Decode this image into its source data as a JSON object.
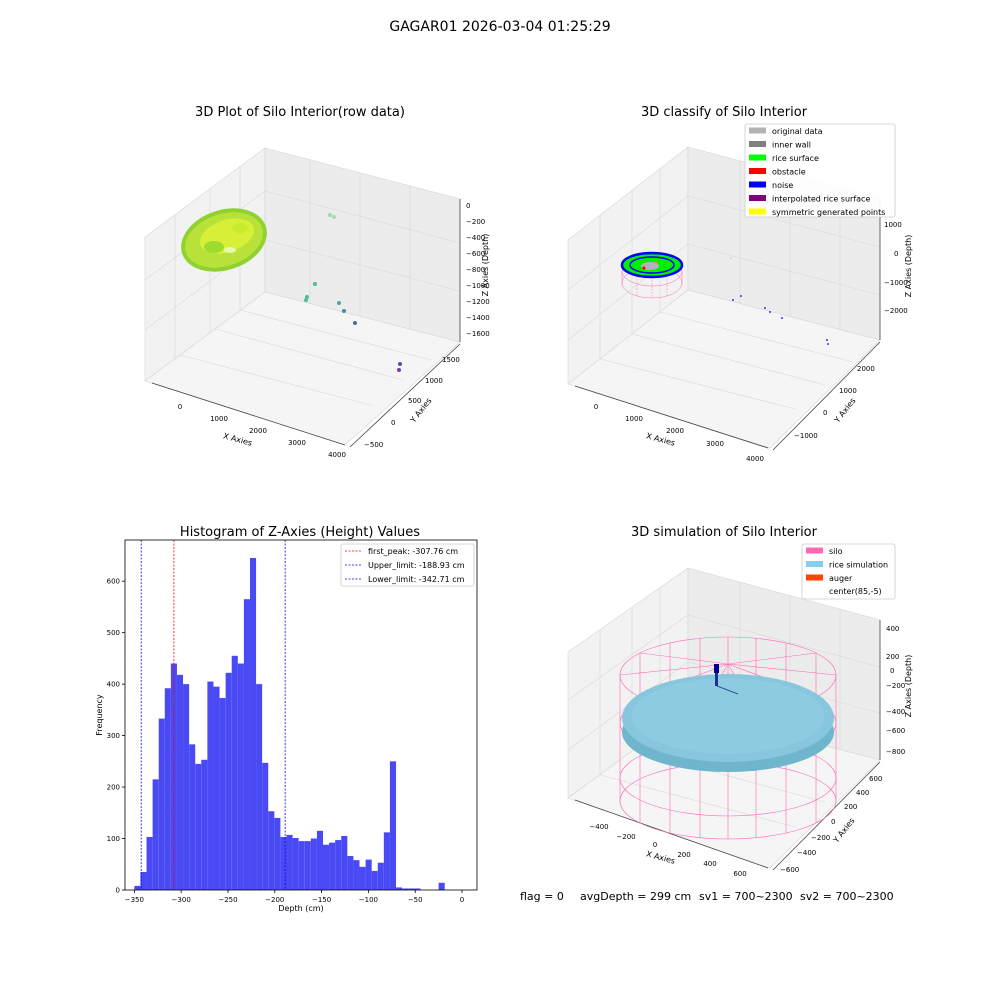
{
  "figure": {
    "suptitle": "GAGAR01 2026-03-04 01:25:29",
    "footer": {
      "flag": "flag = 0",
      "avg": "avgDepth = 299 cm",
      "sv1": "sv1 = 700~2300",
      "sv2": "sv2 = 700~2300"
    }
  },
  "colors": {
    "original_data": "#b3b3b3",
    "inner_wall": "#808080",
    "rice_surface": "#00ff00",
    "obstacle": "#ff0000",
    "noise": "#0000ff",
    "interpolated": "#800080",
    "symmetric": "#ffff00",
    "silo": "#ff69b4",
    "rice_sim": "#87ceeb",
    "auger": "#ff4500",
    "hist_bar": "#4a4af5"
  },
  "chart_data": [
    {
      "type": "scatter3d",
      "title": "3D Plot of Silo Interior(row data)",
      "xlabel": "X Axies",
      "ylabel": "Y Axies",
      "zlabel": "Z Axies (Depth)",
      "xticks": [
        "0",
        "1000",
        "2000",
        "3000",
        "4000"
      ],
      "yticks": [
        "−500",
        "0",
        "500",
        "1000",
        "1500"
      ],
      "zticks": [
        "0",
        "−200",
        "−400",
        "−600",
        "−800",
        "−1000",
        "−1200",
        "−1400",
        "−1600"
      ]
    },
    {
      "type": "scatter3d",
      "title": "3D classify of Silo Interior",
      "xlabel": "X Axies",
      "ylabel": "Y Axies",
      "zlabel": "Z Axies (Depth)",
      "xticks": [
        "0",
        "1000",
        "2000",
        "3000",
        "4000"
      ],
      "yticks": [
        "−1000",
        "0",
        "1000",
        "2000"
      ],
      "zticks": [
        "1000",
        "0",
        "−1000",
        "−2000"
      ],
      "legend": [
        "original data",
        "inner wall",
        "rice surface",
        "obstacle",
        "noise",
        "interpolated rice surface",
        "symmetric generated points"
      ],
      "legend_loc": "upper right"
    },
    {
      "type": "bar",
      "title": "Histogram of Z-Axies (Height) Values",
      "xlabel": "Depth (cm)",
      "ylabel": "Frequency",
      "xlim": [
        -360,
        16
      ],
      "ylim": [
        0,
        680
      ],
      "xticks": [
        -350,
        -300,
        -250,
        -200,
        -150,
        -100,
        -50,
        0
      ],
      "yticks": [
        0,
        100,
        200,
        300,
        400,
        500,
        600
      ],
      "bin_start": -350,
      "bin_width": 6.5,
      "values": [
        8,
        35,
        103,
        215,
        333,
        392,
        440,
        418,
        400,
        283,
        245,
        253,
        405,
        395,
        373,
        422,
        455,
        440,
        565,
        645,
        400,
        247,
        153,
        140,
        103,
        107,
        101,
        95,
        95,
        100,
        115,
        88,
        92,
        97,
        105,
        66,
        58,
        45,
        59,
        37,
        53,
        112,
        250,
        5,
        3,
        3,
        3,
        0,
        0,
        0,
        14
      ],
      "lines": [
        {
          "label": "first_peak: -307.76 cm",
          "x": -307.76,
          "color": "#ff0000"
        },
        {
          "label": "Upper_limit: -188.93 cm",
          "x": -188.93,
          "color": "#0000ff"
        },
        {
          "label": "Lower_limit: -342.71 cm",
          "x": -342.71,
          "color": "#0000ff"
        }
      ],
      "legend_loc": "upper right"
    },
    {
      "type": "surface3d",
      "title": "3D simulation of Silo Interior",
      "xlabel": "X Axies",
      "ylabel": "Y Axies",
      "zlabel": "Z Axies (Depth)",
      "xticks": [
        "−400",
        "−200",
        "0",
        "200",
        "400",
        "600"
      ],
      "yticks": [
        "−600",
        "−400",
        "−200",
        "0",
        "200",
        "400",
        "600"
      ],
      "zticks": [
        "400",
        "200",
        "0",
        "−200",
        "−400",
        "−600",
        "−800"
      ],
      "legend": [
        "silo",
        "rice simulation",
        "auger",
        "center(85,-5)"
      ],
      "legend_loc": "upper right"
    }
  ]
}
